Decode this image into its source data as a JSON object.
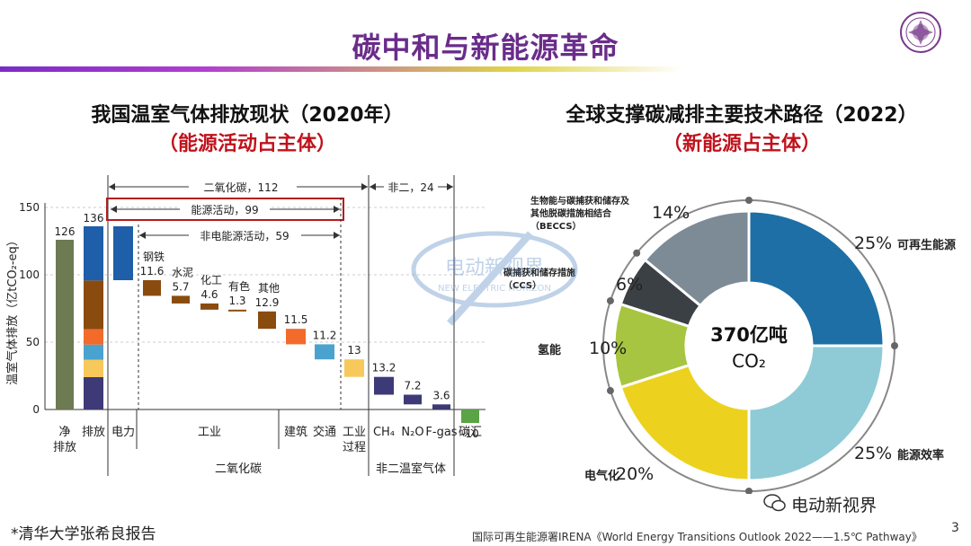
{
  "page": {
    "title": "碳中和与新能源革命",
    "footer_note": "*清华大学张希良报告",
    "source_note": "国际可再生能源署IRENA《World Energy Transitions Outlook 2022——1.5℃ Pathway》",
    "page_number": "3",
    "wechat_label": "电动新视界",
    "watermark_cn": "电动新视界",
    "watermark_en": "NEW ELECTRIC HORIZON"
  },
  "left_panel": {
    "title": "我国温室气体排放现状（2020年）",
    "subtitle": "（能源活动占主体）"
  },
  "right_panel": {
    "title": "全球支撑碳减排主要技术路径（2022）",
    "subtitle": "（新能源占主体）"
  },
  "chart_data": [
    {
      "type": "bar",
      "subtype": "waterfall",
      "ylabel": "温室气体排放（亿tCO₂-eq）",
      "ylim": [
        -15,
        150
      ],
      "yticks": [
        0,
        50,
        100,
        150
      ],
      "bars": [
        {
          "label": "净排放",
          "value": 126,
          "base": 0,
          "color": "#6e7a52",
          "value_label": "126"
        },
        {
          "label": "排放",
          "value": 136,
          "base": 0,
          "color": "stack",
          "value_label": "136"
        },
        {
          "label": "电力",
          "value": 40,
          "base": 96,
          "color": "#1f5ea8",
          "value_label": "40"
        },
        {
          "label": "钢铁",
          "value": 11.6,
          "base": 84.4,
          "color": "#8a4b0f",
          "value_label": "11.6"
        },
        {
          "label": "水泥",
          "value": 5.7,
          "base": 78.7,
          "color": "#8a4b0f",
          "value_label": "5.7"
        },
        {
          "label": "化工",
          "value": 4.6,
          "base": 74.1,
          "color": "#8a4b0f",
          "value_label": "4.6"
        },
        {
          "label": "有色",
          "value": 1.3,
          "base": 72.8,
          "color": "#8a4b0f",
          "value_label": "1.3"
        },
        {
          "label": "其他",
          "value": 12.9,
          "base": 59.9,
          "color": "#8a4b0f",
          "value_label": "12.9"
        },
        {
          "label": "建筑",
          "value": 11.5,
          "base": 48.4,
          "color": "#f26b2a",
          "value_label": "11.5"
        },
        {
          "label": "交通",
          "value": 11.2,
          "base": 37.2,
          "color": "#4aa3cf",
          "value_label": "11.2"
        },
        {
          "label": "工业过程",
          "value": 13,
          "base": 24.2,
          "color": "#f7c85a",
          "value_label": "13"
        },
        {
          "label": "CH₄",
          "value": 13.2,
          "base": 11,
          "color": "#3e3a78",
          "value_label": "13.2"
        },
        {
          "label": "N₂O",
          "value": 7.2,
          "base": 3.8,
          "color": "#3e3a78",
          "value_label": "7.2"
        },
        {
          "label": "F-gas",
          "value": 3.6,
          "base": 0.2,
          "color": "#3e3a78",
          "value_label": "3.6"
        },
        {
          "label": "碳汇",
          "value": -10,
          "base": 0,
          "color": "#5aa346",
          "value_label": "-10"
        }
      ],
      "stack_segments": [
        {
          "value": 24,
          "color": "#3e3a78"
        },
        {
          "value": 13,
          "color": "#f7c85a"
        },
        {
          "value": 11.2,
          "color": "#4aa3cf"
        },
        {
          "value": 11.5,
          "color": "#f26b2a"
        },
        {
          "value": 36.1,
          "color": "#8a4b0f"
        },
        {
          "value": 40.2,
          "color": "#1f5ea8"
        }
      ],
      "x_labels": {
        "net": "净\n排放",
        "emit": "排放",
        "power": "电力",
        "industry": "工业",
        "building": "建筑",
        "transport": "交通",
        "process": "工业\n过程",
        "ch4": "CH₄",
        "n2o": "N₂O",
        "fgas": "F-gas",
        "sink": "碳汇"
      },
      "group_labels": {
        "co2": "二氧化碳",
        "nonco2": "非二温室气体"
      },
      "annotations": {
        "co2_total": "二氧化碳，112",
        "non_co2": "非二，24",
        "energy": "能源活动，99",
        "non_energy": "非电能源活动，59"
      }
    },
    {
      "type": "pie",
      "subtype": "donut",
      "center_label_1": "370亿吨",
      "center_label_2": "CO₂",
      "slices": [
        {
          "name": "可再生能源",
          "value": 25,
          "label": "25%",
          "color": "#1d6fa5"
        },
        {
          "name": "能源效率",
          "value": 25,
          "label": "25%",
          "color": "#8fcbd6"
        },
        {
          "name": "电气化",
          "value": 20,
          "label": "20%",
          "color": "#ecd21f"
        },
        {
          "name": "氢能",
          "value": 10,
          "label": "10%",
          "color": "#a7c540"
        },
        {
          "name": "碳捕获和储存措施\n（CCS）",
          "value": 6,
          "label": "6%",
          "color": "#3b4045"
        },
        {
          "name": "生物能与碳捕获和储存及\n其他脱碳措施相结合\n（BECCS）",
          "value": 14,
          "label": "14%",
          "color": "#7d8b97"
        }
      ]
    }
  ]
}
